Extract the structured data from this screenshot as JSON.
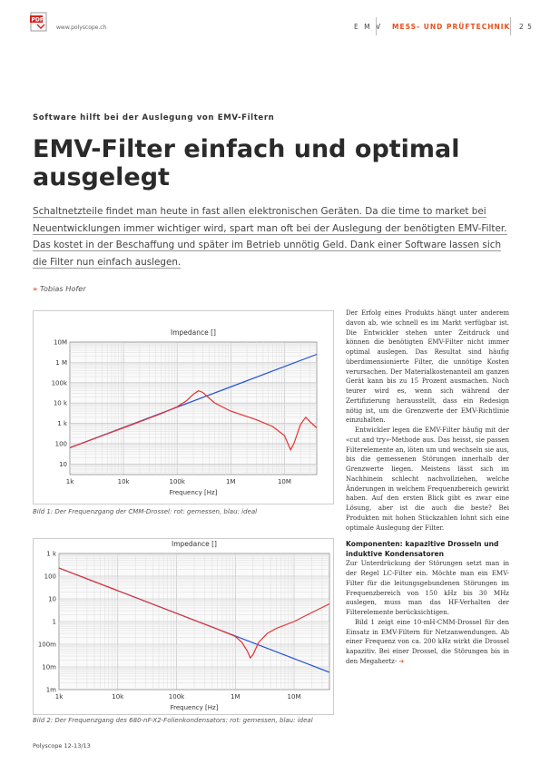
{
  "header": {
    "pdf_icon_label": "PDF",
    "url": "www.polyscope.ch",
    "section_left": "E M V",
    "section": "MESS- UND PRÜFTECHNIK",
    "page": "2 5"
  },
  "article": {
    "kicker": "Software hilft bei der Auslegung von EMV-Filtern",
    "title": "EMV-Filter einfach und optimal ausgelegt",
    "lead_lines": [
      "Schaltnetzteile findet man heute in fast allen elektronischen Geräten. Da die time to market bei",
      "Neuentwicklungen immer wichtiger wird, spart man oft bei der Auslegung der benötigten EMV-Filter.",
      "Das kostet in der Beschaffung und später im Betrieb unnötig Geld. Dank einer Software lassen sich",
      "die Filter nun einfach auslegen."
    ],
    "author_marker": "»",
    "author": "Tobias Hofer",
    "body": {
      "p1": "Der Erfolg eines Produkts hängt unter anderem davon ab, wie schnell es im Markt verfügbar ist. Die Entwickler stehen unter Zeitdruck und können die benötigten EMV-Filter nicht immer optimal auslegen. Das Resultat sind häufig überdimensionierte Filter, die unnötige Kosten verursachen. Der Materialkostenanteil am ganzen Gerät kann bis zu 15 Prozent ausmachen. Noch teurer wird es, wenn sich während der Zertifizierung herausstellt, dass ein Redesign nötig ist, um die Grenzwerte der EMV-Richtlinie einzuhalten.",
      "p2": "Entwickler legen die EMV-Filter häufig mit der «cut and try»-Methode aus. Das heisst, sie passen Filterelemente an, löten um und wechseln sie aus, bis die gemessenen Störungen innerhalb der Grenzwerte liegen. Meistens lässt sich im Nachhinein schlecht nachvollziehen, welche Änderungen in welchem Frequenzbereich gewirkt haben. Auf den ersten Blick gibt es zwar eine Lösung, aber ist die auch die beste? Bei Produkten mit hohen Stückzahlen lohnt sich eine optimale Auslegung der Filter.",
      "h": "Komponenten: kapazitive Drosseln und induktive Kondensatoren",
      "p3": "Zur Unterdrückung der Störungen setzt man in der Regel LC-Filter ein. Möchte man ein EMV-Filter für die leitungsgebundenen Störungen im Frequenzbereich von 150 kHz bis 30 MHz auslegen, muss man das HF-Verhalten der Filterelemente berücksichtigen.",
      "p4": "Bild 1 zeigt eine 10-mH-CMM-Drossel für den Einsatz in EMV-Filtern für Netzanwendungen. Ab einer Frequenz von ca. 200 kHz wirkt die Drossel kapazitiv. Bei einer Drossel, die Störungen bis in den Megahertz-",
      "continue_arrow": "➔"
    }
  },
  "figures": [
    {
      "caption": "Bild 1: Der Frequenzgang der CMM-Drossel: rot: gemessen, blau: ideal"
    },
    {
      "caption": "Bild 2: Der Frequenzgang des 680-nF-X2-Folienkondensators: rot: gemessen, blau: ideal"
    }
  ],
  "chart_data": [
    {
      "type": "line",
      "title": "Impedance []",
      "xlabel": "Frequency [Hz]",
      "ylabel": "",
      "xscale": "log",
      "yscale": "log",
      "xlim": [
        1000,
        40000000
      ],
      "ylim": [
        3,
        10000000
      ],
      "x_ticks": [
        "1k",
        "10k",
        "100k",
        "1M",
        "10M"
      ],
      "y_ticks": [
        "10",
        "100",
        "1 k",
        "10 k",
        "100k",
        "1 M",
        "10M"
      ],
      "grid": true,
      "colors": {
        "measured": "#e83030",
        "ideal": "#2050d8"
      },
      "series": [
        {
          "key": "ideal",
          "x": [
            1000,
            40000000
          ],
          "y": [
            63,
            2500000
          ]
        },
        {
          "key": "measured",
          "x": [
            1000,
            10000,
            50000,
            100000,
            150000,
            200000,
            250000,
            300000,
            500000,
            1000000,
            3000000,
            6000000,
            10000000,
            13000000,
            15000000,
            20000000,
            25000000,
            30000000,
            40000000
          ],
          "y": [
            63,
            600,
            3000,
            6500,
            13000,
            27000,
            40000,
            33000,
            10000,
            4000,
            1500,
            700,
            250,
            50,
            100,
            900,
            2000,
            1200,
            600
          ]
        }
      ]
    },
    {
      "type": "line",
      "title": "Impedance []",
      "xlabel": "Frequency [Hz]",
      "ylabel": "",
      "xscale": "log",
      "yscale": "log",
      "xlim": [
        1000,
        40000000
      ],
      "ylim": [
        0.001,
        1000
      ],
      "x_ticks": [
        "1k",
        "10k",
        "100k",
        "1M",
        "10M"
      ],
      "y_ticks": [
        "1m",
        "10m",
        "100m",
        "1",
        "10",
        "100",
        "1 k"
      ],
      "grid": true,
      "colors": {
        "measured": "#e83030",
        "ideal": "#2050d8"
      },
      "series": [
        {
          "key": "ideal",
          "x": [
            1000,
            40000000
          ],
          "y": [
            230,
            0.0058
          ]
        },
        {
          "key": "measured",
          "x": [
            1000,
            10000,
            100000,
            500000,
            1000000,
            1300000,
            1600000,
            1800000,
            2000000,
            2500000,
            3500000,
            5000000,
            10000000,
            20000000,
            40000000
          ],
          "y": [
            230,
            23,
            2.3,
            0.46,
            0.22,
            0.12,
            0.05,
            0.025,
            0.035,
            0.12,
            0.3,
            0.5,
            1.0,
            2.5,
            6.0
          ]
        }
      ]
    }
  ],
  "footer": "Polyscope 12-13/13"
}
